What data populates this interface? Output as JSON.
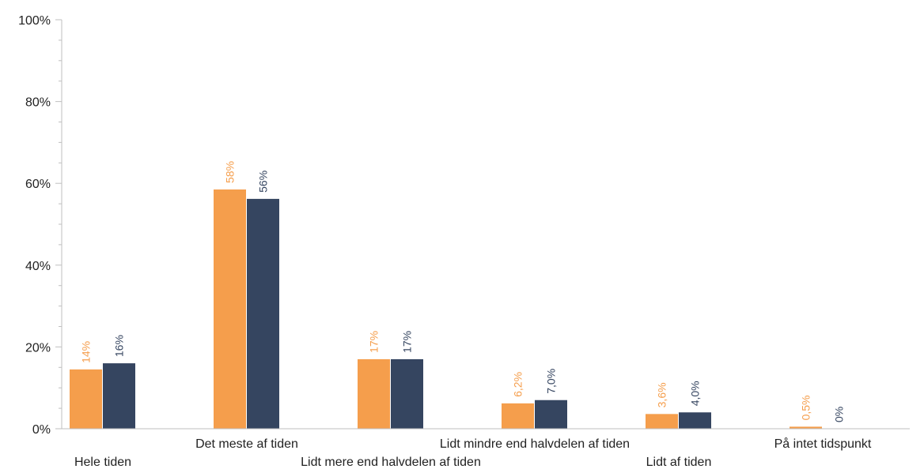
{
  "chart_data": {
    "type": "bar",
    "categories": [
      "Hele tiden",
      "Det meste af tiden",
      "Lidt mere end halvdelen af tiden",
      "Lidt mindre end halvdelen af tiden",
      "Lidt af tiden",
      "På intet tidspunkt"
    ],
    "series": [
      {
        "color": "#f59e4c",
        "values": [
          14.5,
          58.5,
          17.0,
          6.2,
          3.6,
          0.5
        ],
        "labels": [
          "14%",
          "58%",
          "17%",
          "6,2%",
          "3,6%",
          "0,5%"
        ]
      },
      {
        "color": "#354560",
        "values": [
          16.0,
          56.2,
          17.0,
          7.0,
          4.0,
          0.0
        ],
        "labels": [
          "16%",
          "56%",
          "17%",
          "7,0%",
          "4,0%",
          "0%"
        ]
      }
    ],
    "title": "",
    "xlabel": "",
    "ylabel": "",
    "ylim": [
      0,
      100
    ],
    "yticks": [
      0,
      20,
      40,
      60,
      80,
      100
    ],
    "ytick_labels": [
      "0%",
      "20%",
      "40%",
      "60%",
      "80%",
      "100%"
    ],
    "grid": false,
    "legend": "none"
  }
}
